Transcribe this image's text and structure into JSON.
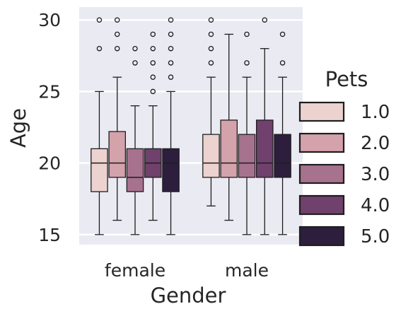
{
  "chart_data": {
    "type": "box",
    "title": "",
    "xlabel": "Gender",
    "ylabel": "Age",
    "ylim": [
      14.3,
      30.9
    ],
    "yticks": [
      15,
      20,
      25,
      30
    ],
    "categories": [
      "female",
      "male"
    ],
    "grid": true,
    "legend": {
      "title": "Pets",
      "placement": "right"
    },
    "hue_levels": [
      {
        "label": "1.0",
        "color": "#ecd3d0"
      },
      {
        "label": "2.0",
        "color": "#d3a2ab"
      },
      {
        "label": "3.0",
        "color": "#a7728e"
      },
      {
        "label": "4.0",
        "color": "#6f416c"
      },
      {
        "label": "5.0",
        "color": "#2d1e3e"
      }
    ],
    "boxes": [
      {
        "category": "female",
        "hue": "1.0",
        "whislo": 15,
        "q1": 18,
        "med": 20,
        "q3": 21,
        "whishi": 25,
        "fliers": [
          28,
          30
        ]
      },
      {
        "category": "female",
        "hue": "2.0",
        "whislo": 16,
        "q1": 19,
        "med": 20,
        "q3": 22.2,
        "whishi": 26,
        "fliers": [
          28,
          29,
          30
        ]
      },
      {
        "category": "female",
        "hue": "3.0",
        "whislo": 15,
        "q1": 18,
        "med": 19,
        "q3": 21,
        "whishi": 24,
        "fliers": [
          27,
          28
        ]
      },
      {
        "category": "female",
        "hue": "4.0",
        "whislo": 16,
        "q1": 19,
        "med": 20,
        "q3": 21,
        "whishi": 24,
        "fliers": [
          25,
          26,
          27,
          28,
          29
        ]
      },
      {
        "category": "female",
        "hue": "5.0",
        "whislo": 15,
        "q1": 18,
        "med": 20,
        "q3": 21,
        "whishi": 25,
        "fliers": [
          26,
          27,
          28,
          29,
          30
        ]
      },
      {
        "category": "male",
        "hue": "1.0",
        "whislo": 17,
        "q1": 19,
        "med": 20,
        "q3": 22,
        "whishi": 26,
        "fliers": [
          27,
          28,
          29,
          30
        ]
      },
      {
        "category": "male",
        "hue": "2.0",
        "whislo": 16,
        "q1": 19,
        "med": 20,
        "q3": 23,
        "whishi": 29,
        "fliers": []
      },
      {
        "category": "male",
        "hue": "3.0",
        "whislo": 15,
        "q1": 19,
        "med": 20,
        "q3": 22,
        "whishi": 26,
        "fliers": [
          27,
          29
        ]
      },
      {
        "category": "male",
        "hue": "4.0",
        "whislo": 15,
        "q1": 19,
        "med": 20,
        "q3": 23,
        "whishi": 28,
        "fliers": [
          30
        ]
      },
      {
        "category": "male",
        "hue": "5.0",
        "whislo": 15,
        "q1": 19,
        "med": 20,
        "q3": 22,
        "whishi": 26,
        "fliers": [
          27,
          29
        ]
      }
    ]
  }
}
